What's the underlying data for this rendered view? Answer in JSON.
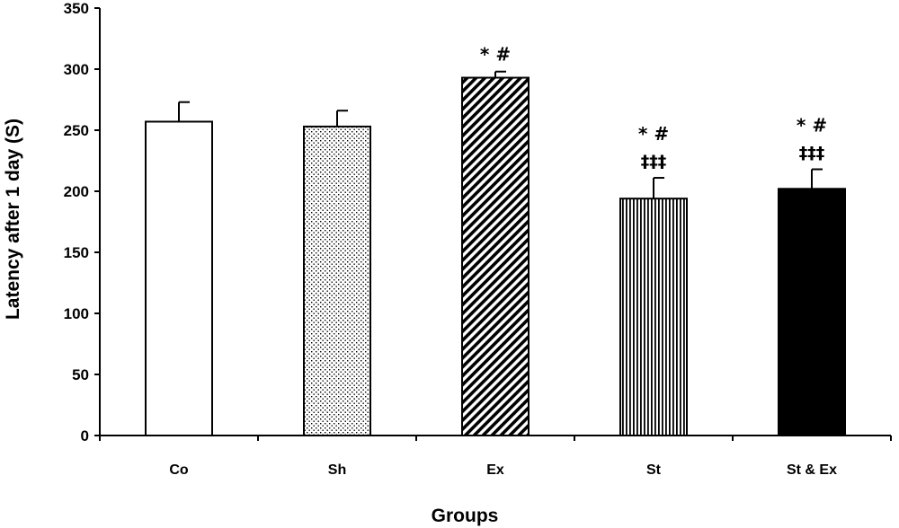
{
  "chart_data": {
    "type": "bar",
    "title": "",
    "xlabel": "Groups",
    "ylabel": "Latency after 1 day (S)",
    "ylim": [
      0,
      350
    ],
    "yticks": [
      "0",
      "50",
      "100",
      "150",
      "200",
      "250",
      "300",
      "350"
    ],
    "grid": false,
    "categories": [
      "Co",
      "Sh",
      "Ex",
      "St",
      "St & Ex"
    ],
    "values": [
      257,
      253,
      293,
      194,
      202
    ],
    "errors": [
      16,
      13,
      5,
      17,
      16
    ],
    "fills": [
      "white",
      "dots",
      "diagonal-stripes",
      "vertical-stripes",
      "solid-black"
    ],
    "annotations": [
      {
        "category": "Ex",
        "lines": [
          "* #"
        ]
      },
      {
        "category": "St",
        "lines": [
          "* #",
          "‡‡‡"
        ]
      },
      {
        "category": "St & Ex",
        "lines": [
          "* #",
          "‡‡‡"
        ]
      }
    ]
  }
}
